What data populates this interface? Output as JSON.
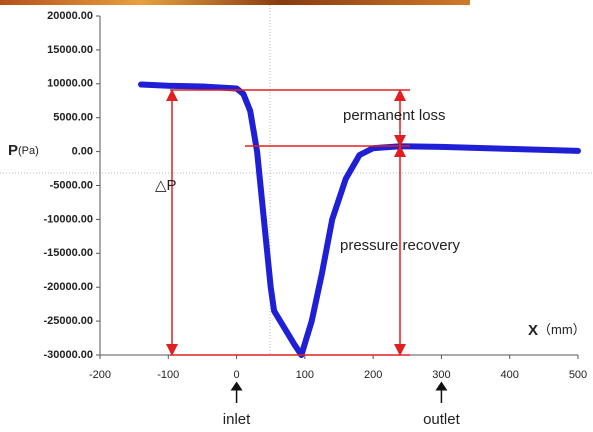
{
  "chart_data": {
    "type": "line",
    "y_label": "P",
    "y_unit": "(Pa)",
    "x_label": "X",
    "x_unit": "（mm）",
    "annotations": [
      "permanent loss",
      "△P",
      "pressure recovery"
    ],
    "markers": [
      {
        "label": "inlet",
        "x": 0
      },
      {
        "label": "outlet",
        "x": 300
      }
    ],
    "x": [
      -140,
      -100,
      -50,
      0,
      10,
      20,
      30,
      40,
      50,
      55,
      70,
      85,
      95,
      110,
      125,
      140,
      160,
      180,
      200,
      240,
      300,
      400,
      500
    ],
    "values": [
      9900,
      9700,
      9600,
      9300,
      8500,
      6000,
      0,
      -10000,
      -20000,
      -23500,
      -26000,
      -28500,
      -30000,
      -25000,
      -18000,
      -10000,
      -4000,
      -500,
      500,
      800,
      700,
      400,
      100
    ],
    "color": "#1f1fd6",
    "xlim": [
      -200,
      500
    ],
    "xticks": [
      -200,
      -100,
      0,
      100,
      200,
      300,
      400,
      500
    ],
    "ylim": [
      -30000,
      20000
    ],
    "yticks": [
      {
        "value": -30000,
        "label": "-30000.00"
      },
      {
        "value": -25000,
        "label": "-25000.00"
      },
      {
        "value": -20000,
        "label": "-20000.00"
      },
      {
        "value": -15000,
        "label": "-15000.00"
      },
      {
        "value": -10000,
        "label": "-10000.00"
      },
      {
        "value": -5000,
        "label": "-5000.00"
      },
      {
        "value": 0,
        "label": "0.00"
      },
      {
        "value": 5000,
        "label": "5000.00"
      },
      {
        "value": 10000,
        "label": "10000.00"
      },
      {
        "value": 15000,
        "label": "15000.00"
      },
      {
        "value": 20000,
        "label": "20000.00"
      }
    ],
    "grid": false
  }
}
